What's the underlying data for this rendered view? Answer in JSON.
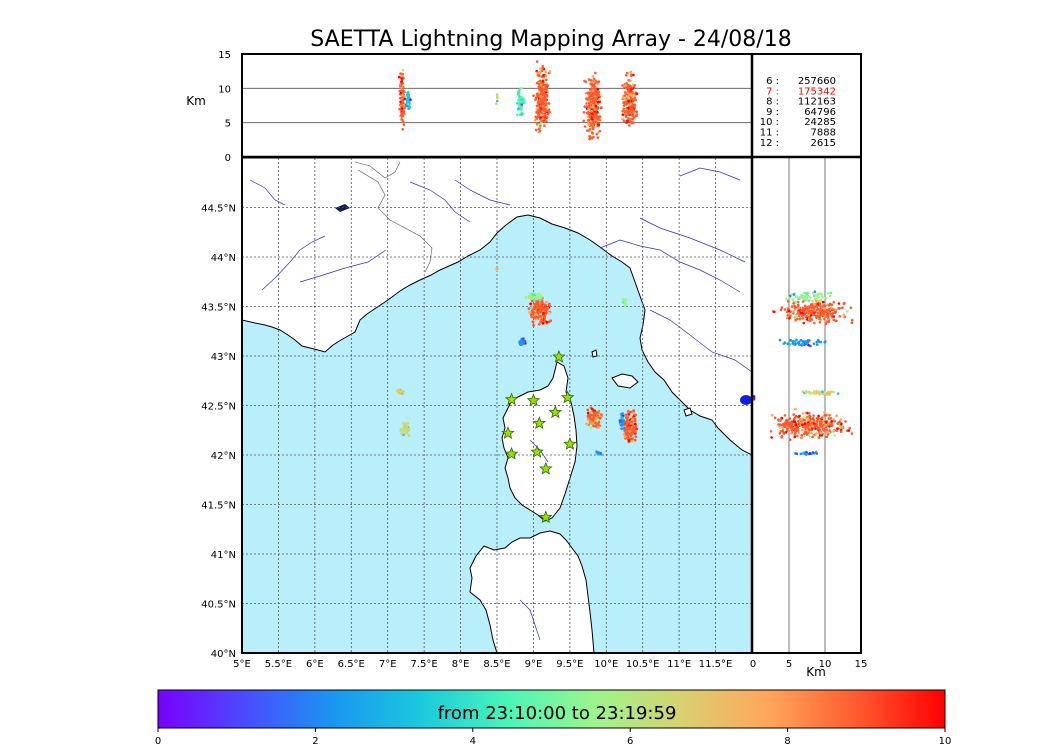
{
  "title": "SAETTA Lightning Mapping Array - 24/08/18",
  "colors": {
    "sea": "#b9eefb",
    "land": "#ffffff",
    "coast": "#000000",
    "river": "#2d2de0",
    "border": "#555555",
    "grid": "#555555",
    "station_fill": "#9be000",
    "station_stroke": "#2a6a00",
    "highlight_count": "#ff0000",
    "colormap": [
      "#7a00ff",
      "#4a4cff",
      "#1a96f0",
      "#1ac9dd",
      "#4af5b9",
      "#9cf58c",
      "#d9d070",
      "#ffa55a",
      "#ff5a2e",
      "#ff0000"
    ]
  },
  "chart_data": [
    {
      "type": "scatter",
      "name": "plan-view",
      "xlim": [
        5,
        12
      ],
      "ylim": [
        40,
        45
      ],
      "x_ticks": [
        "5°E",
        "5.5°E",
        "6°E",
        "6.5°E",
        "7°E",
        "7.5°E",
        "8°E",
        "8.5°E",
        "9°E",
        "9.5°E",
        "10°E",
        "10.5°E",
        "11°E",
        "11.5°E"
      ],
      "x_tick_values": [
        5,
        5.5,
        6,
        6.5,
        7,
        7.5,
        8,
        8.5,
        9,
        9.5,
        10,
        10.5,
        11,
        11.5
      ],
      "y_ticks": [
        "40°N",
        "40.5°N",
        "41°N",
        "41.5°N",
        "42°N",
        "42.5°N",
        "43°N",
        "43.5°N",
        "44°N",
        "44.5°N"
      ],
      "y_tick_values": [
        40,
        40.5,
        41,
        41.5,
        42,
        42.5,
        43,
        43.5,
        44,
        44.5
      ],
      "grid": true,
      "stations": [
        {
          "lon": 8.7,
          "lat": 42.56
        },
        {
          "lon": 9.0,
          "lat": 42.55
        },
        {
          "lon": 9.47,
          "lat": 42.58
        },
        {
          "lon": 9.35,
          "lat": 42.99
        },
        {
          "lon": 9.08,
          "lat": 42.32
        },
        {
          "lon": 9.3,
          "lat": 42.43
        },
        {
          "lon": 8.65,
          "lat": 42.22
        },
        {
          "lon": 9.5,
          "lat": 42.11
        },
        {
          "lon": 8.7,
          "lat": 42.01
        },
        {
          "lon": 9.05,
          "lat": 42.03
        },
        {
          "lon": 9.17,
          "lat": 41.86
        },
        {
          "lon": 9.17,
          "lat": 41.37
        }
      ],
      "clusters": [
        {
          "lon": 9.1,
          "lat": 43.45,
          "dlon": 0.18,
          "dlat": 0.17,
          "color": 8,
          "n": 170
        },
        {
          "lon": 9.02,
          "lat": 43.6,
          "dlon": 0.14,
          "dlat": 0.05,
          "color": 5,
          "n": 55
        },
        {
          "lon": 8.85,
          "lat": 43.14,
          "dlon": 0.06,
          "dlat": 0.04,
          "color": 2,
          "n": 30
        },
        {
          "lon": 7.17,
          "lat": 42.64,
          "dlon": 0.06,
          "dlat": 0.04,
          "color": 6,
          "n": 30
        },
        {
          "lon": 7.23,
          "lat": 42.27,
          "dlon": 0.09,
          "dlat": 0.09,
          "color": 6,
          "n": 45
        },
        {
          "lon": 9.82,
          "lat": 42.37,
          "dlon": 0.15,
          "dlat": 0.14,
          "color": 8,
          "n": 130
        },
        {
          "lon": 10.32,
          "lat": 42.28,
          "dlon": 0.13,
          "dlat": 0.19,
          "color": 8,
          "n": 140
        },
        {
          "lon": 10.22,
          "lat": 42.35,
          "dlon": 0.05,
          "dlat": 0.1,
          "color": 2,
          "n": 30
        },
        {
          "lon": 9.9,
          "lat": 42.02,
          "dlon": 0.05,
          "dlat": 0.02,
          "color": 2,
          "n": 12
        },
        {
          "lon": 10.25,
          "lat": 43.55,
          "dlon": 0.04,
          "dlat": 0.05,
          "color": 5,
          "n": 12
        },
        {
          "lon": 8.5,
          "lat": 43.88,
          "dlon": 0.02,
          "dlat": 0.03,
          "color": 6,
          "n": 5
        }
      ]
    },
    {
      "type": "scatter",
      "name": "lon-altitude",
      "ylabel": "Km",
      "xlim": [
        5,
        12
      ],
      "ylim": [
        0,
        15
      ],
      "y_ticks": [
        "0",
        "5",
        "10",
        "15"
      ],
      "y_tick_values": [
        0,
        5,
        10,
        15
      ],
      "gridlines": [
        5,
        10
      ],
      "clusters": [
        {
          "lon": 7.2,
          "alt": 8.5,
          "dlon": 0.05,
          "dalt": 5,
          "color": 8,
          "n": 120
        },
        {
          "lon": 7.28,
          "alt": 8.5,
          "dlon": 0.04,
          "dalt": 2.5,
          "color": 3,
          "n": 40
        },
        {
          "lon": 8.5,
          "alt": 8.5,
          "dlon": 0.02,
          "dalt": 1,
          "color": 6,
          "n": 6
        },
        {
          "lon": 8.82,
          "alt": 8.0,
          "dlon": 0.06,
          "dalt": 3,
          "color": 4,
          "n": 60
        },
        {
          "lon": 9.12,
          "alt": 8.5,
          "dlon": 0.13,
          "dalt": 6,
          "color": 8,
          "n": 280
        },
        {
          "lon": 9.82,
          "alt": 7.5,
          "dlon": 0.14,
          "dalt": 6.5,
          "color": 8,
          "n": 300
        },
        {
          "lon": 10.32,
          "alt": 8.0,
          "dlon": 0.13,
          "dalt": 5,
          "color": 8,
          "n": 220
        }
      ]
    },
    {
      "type": "scatter",
      "name": "altitude-lat",
      "xlabel": "Km",
      "xlim": [
        0,
        15
      ],
      "ylim": [
        40,
        45
      ],
      "x_ticks": [
        "0",
        "5",
        "10",
        "15"
      ],
      "x_tick_values": [
        0,
        5,
        10,
        15
      ],
      "gridlines": [
        5,
        10
      ],
      "clusters": [
        {
          "alt": 8.5,
          "lat": 43.45,
          "dalt": 6,
          "dlat": 0.15,
          "color": 8,
          "n": 260
        },
        {
          "alt": 7.5,
          "lat": 43.6,
          "dalt": 4,
          "dlat": 0.07,
          "color": 5,
          "n": 60
        },
        {
          "alt": 7.0,
          "lat": 43.14,
          "dalt": 4,
          "dlat": 0.05,
          "color": 2,
          "n": 50
        },
        {
          "alt": 9.0,
          "lat": 42.63,
          "dalt": 4,
          "dlat": 0.04,
          "color": 6,
          "n": 40
        },
        {
          "alt": 8.0,
          "lat": 42.3,
          "dalt": 7,
          "dlat": 0.17,
          "color": 8,
          "n": 360
        },
        {
          "alt": 7.5,
          "lat": 42.02,
          "dalt": 3,
          "dlat": 0.02,
          "color": 2,
          "n": 25
        },
        {
          "alt": 0.1,
          "lat": 42.58,
          "dalt": 0.1,
          "dlat": 0.03,
          "color": 0,
          "n": 8
        }
      ]
    }
  ],
  "legend": {
    "rows": [
      {
        "label": "6  :",
        "value": "257660",
        "highlight": false
      },
      {
        "label": "7  :",
        "value": "175342",
        "highlight": true
      },
      {
        "label": "8  :",
        "value": "112163",
        "highlight": false
      },
      {
        "label": "9  :",
        "value": "64796",
        "highlight": false
      },
      {
        "label": "10  :",
        "value": "24285",
        "highlight": false
      },
      {
        "label": "11  :",
        "value": "7888",
        "highlight": false
      },
      {
        "label": "12  :",
        "value": "2615",
        "highlight": false
      }
    ]
  },
  "colorbar": {
    "label": "from 23:10:00 to 23:19:59",
    "ticks": [
      "0",
      "2",
      "4",
      "6",
      "8",
      "10"
    ],
    "tick_values": [
      0,
      2,
      4,
      6,
      8,
      10
    ],
    "range": [
      0,
      10
    ]
  }
}
